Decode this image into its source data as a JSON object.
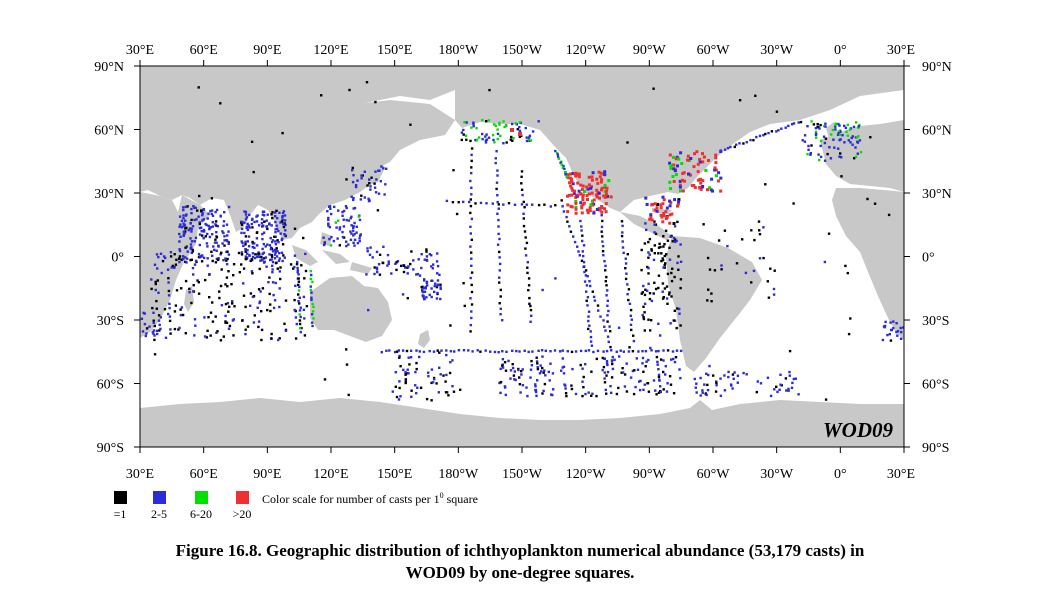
{
  "figure": {
    "watermark": "WOD09",
    "lon_ticks": [
      "30°E",
      "60°E",
      "90°E",
      "120°E",
      "150°E",
      "180°W",
      "150°W",
      "120°W",
      "90°W",
      "60°W",
      "30°W",
      "0°",
      "30°E"
    ],
    "lat_ticks": [
      "90°N",
      "60°N",
      "30°N",
      "0°",
      "30°S",
      "60°S",
      "90°S"
    ],
    "colors": {
      "land": "#c8c8c8",
      "ocean": "#ffffff",
      "frame": "#000000",
      "cast_1": "#000000",
      "cast_2_5": "#2b2bd8",
      "cast_6_20": "#00e000",
      "cast_gt20": "#f03030"
    }
  },
  "legend": {
    "items": [
      {
        "label": "=1",
        "color": "#000000"
      },
      {
        "label": "2-5",
        "color": "#2b2bd8"
      },
      {
        "label": "6-20",
        "color": "#00e000"
      },
      {
        "label": ">20",
        "color": "#f03030"
      }
    ],
    "description_prefix": "Color scale for number of casts per 1",
    "description_sup": "0",
    "description_suffix": " square"
  },
  "caption": {
    "line1": "Figure 16.8. Geographic distribution of ichthyoplankton numerical abundance (53,179 casts) in",
    "line2": "WOD09 by one-degree squares."
  }
}
